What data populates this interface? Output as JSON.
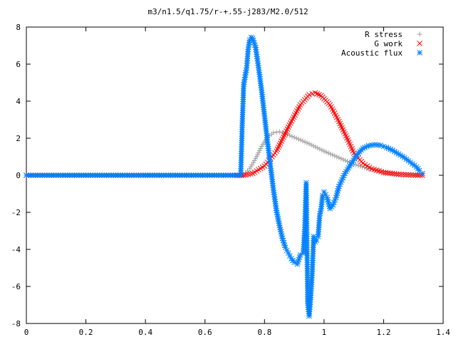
{
  "chart_data": {
    "type": "scatter",
    "title": "m3/n1.5/q1.75/r-+.55-j283/M2.0/512",
    "xlabel": "",
    "ylabel": "",
    "xlim": [
      0,
      1.4
    ],
    "ylim": [
      -8,
      8
    ],
    "x_ticks": [
      "0",
      "0.2",
      "0.4",
      "0.6",
      "0.8",
      "1",
      "1.2",
      "1.4"
    ],
    "y_ticks": [
      "8",
      "6",
      "4",
      "2",
      "0",
      "-2",
      "-4",
      "-6",
      "-8"
    ],
    "grid": false,
    "legend_position": "top-right",
    "series": [
      {
        "name": "R stress",
        "marker": "+",
        "color": "#a0a0a0",
        "points": [
          [
            0.0,
            0
          ],
          [
            0.1,
            0
          ],
          [
            0.2,
            0
          ],
          [
            0.3,
            0
          ],
          [
            0.4,
            0
          ],
          [
            0.5,
            0
          ],
          [
            0.6,
            0
          ],
          [
            0.7,
            0
          ],
          [
            0.73,
            0.02
          ],
          [
            0.75,
            0.35
          ],
          [
            0.77,
            0.9
          ],
          [
            0.79,
            1.55
          ],
          [
            0.81,
            2.05
          ],
          [
            0.83,
            2.3
          ],
          [
            0.85,
            2.35
          ],
          [
            0.87,
            2.25
          ],
          [
            0.9,
            2.05
          ],
          [
            0.95,
            1.7
          ],
          [
            1.0,
            1.3
          ],
          [
            1.05,
            0.95
          ],
          [
            1.1,
            0.6
          ],
          [
            1.15,
            0.35
          ],
          [
            1.2,
            0.2
          ],
          [
            1.25,
            0.08
          ],
          [
            1.3,
            0.02
          ],
          [
            1.33,
            0
          ]
        ]
      },
      {
        "name": "G work",
        "marker": "x",
        "color": "#ff0000",
        "points": [
          [
            0.0,
            0
          ],
          [
            0.1,
            0
          ],
          [
            0.2,
            0
          ],
          [
            0.3,
            0
          ],
          [
            0.4,
            0
          ],
          [
            0.5,
            0
          ],
          [
            0.6,
            0
          ],
          [
            0.7,
            0
          ],
          [
            0.73,
            0
          ],
          [
            0.76,
            0.1
          ],
          [
            0.8,
            0.5
          ],
          [
            0.84,
            1.3
          ],
          [
            0.88,
            2.6
          ],
          [
            0.92,
            3.8
          ],
          [
            0.95,
            4.35
          ],
          [
            0.97,
            4.45
          ],
          [
            0.99,
            4.3
          ],
          [
            1.02,
            3.8
          ],
          [
            1.05,
            2.9
          ],
          [
            1.08,
            1.9
          ],
          [
            1.1,
            1.2
          ],
          [
            1.13,
            0.65
          ],
          [
            1.16,
            0.35
          ],
          [
            1.2,
            0.15
          ],
          [
            1.25,
            0.05
          ],
          [
            1.3,
            0.01
          ],
          [
            1.33,
            0
          ]
        ]
      },
      {
        "name": "Acoustic flux",
        "marker": "*",
        "color": "#0080ff",
        "points": [
          [
            0.0,
            0
          ],
          [
            0.1,
            0
          ],
          [
            0.2,
            0
          ],
          [
            0.3,
            0
          ],
          [
            0.4,
            0
          ],
          [
            0.5,
            0
          ],
          [
            0.6,
            0
          ],
          [
            0.7,
            0
          ],
          [
            0.72,
            0
          ],
          [
            0.725,
            2.7
          ],
          [
            0.73,
            4.9
          ],
          [
            0.74,
            5.8
          ],
          [
            0.745,
            6.8
          ],
          [
            0.75,
            7.3
          ],
          [
            0.755,
            7.45
          ],
          [
            0.76,
            7.4
          ],
          [
            0.77,
            6.9
          ],
          [
            0.78,
            5.8
          ],
          [
            0.79,
            4.6
          ],
          [
            0.8,
            3.2
          ],
          [
            0.81,
            1.8
          ],
          [
            0.82,
            0.5
          ],
          [
            0.83,
            -0.8
          ],
          [
            0.84,
            -1.9
          ],
          [
            0.85,
            -2.7
          ],
          [
            0.86,
            -3.4
          ],
          [
            0.87,
            -3.9
          ],
          [
            0.88,
            -4.2
          ],
          [
            0.89,
            -4.5
          ],
          [
            0.9,
            -4.7
          ],
          [
            0.91,
            -4.8
          ],
          [
            0.92,
            -4.3
          ],
          [
            0.93,
            -4.2
          ],
          [
            0.935,
            -2.8
          ],
          [
            0.94,
            -0.4
          ],
          [
            0.945,
            -6.9
          ],
          [
            0.95,
            -7.6
          ],
          [
            0.955,
            -6.6
          ],
          [
            0.96,
            -5.3
          ],
          [
            0.965,
            -3.3
          ],
          [
            0.97,
            -3.6
          ],
          [
            0.975,
            -3.5
          ],
          [
            0.98,
            -3.3
          ],
          [
            0.985,
            -2.2
          ],
          [
            0.99,
            -1.8
          ],
          [
            0.995,
            -1.1
          ],
          [
            1.0,
            -0.9
          ],
          [
            1.01,
            -1.2
          ],
          [
            1.02,
            -1.8
          ],
          [
            1.03,
            -1.6
          ],
          [
            1.04,
            -1.2
          ],
          [
            1.05,
            -0.6
          ],
          [
            1.07,
            0.1
          ],
          [
            1.09,
            0.6
          ],
          [
            1.11,
            1.1
          ],
          [
            1.13,
            1.45
          ],
          [
            1.15,
            1.6
          ],
          [
            1.17,
            1.65
          ],
          [
            1.19,
            1.62
          ],
          [
            1.21,
            1.5
          ],
          [
            1.23,
            1.35
          ],
          [
            1.25,
            1.15
          ],
          [
            1.27,
            0.95
          ],
          [
            1.29,
            0.7
          ],
          [
            1.31,
            0.45
          ],
          [
            1.32,
            0.25
          ],
          [
            1.33,
            0.1
          ]
        ]
      }
    ]
  }
}
